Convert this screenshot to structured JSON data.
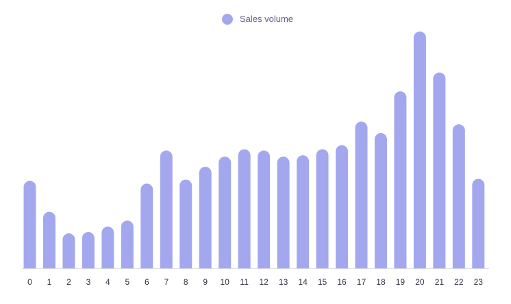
{
  "legend": {
    "label": "Sales volume"
  },
  "colors": {
    "bar": "#a3a8ee",
    "axis": "#d9dbe7",
    "text": "#2f3142"
  },
  "chart_data": {
    "type": "bar",
    "categories": [
      "0",
      "1",
      "2",
      "3",
      "4",
      "5",
      "6",
      "7",
      "8",
      "9",
      "10",
      "11",
      "12",
      "13",
      "14",
      "15",
      "16",
      "17",
      "18",
      "19",
      "20",
      "21",
      "22",
      "23"
    ],
    "series": [
      {
        "name": "Sales volume",
        "values": [
          130,
          84,
          52,
          54,
          62,
          71,
          126,
          175,
          132,
          151,
          166,
          177,
          175,
          166,
          168,
          177,
          183,
          218,
          201,
          263,
          352,
          291,
          214,
          133
        ]
      }
    ],
    "ylim": [
      0,
      360
    ],
    "grid": false,
    "legend_position": "top-center"
  }
}
